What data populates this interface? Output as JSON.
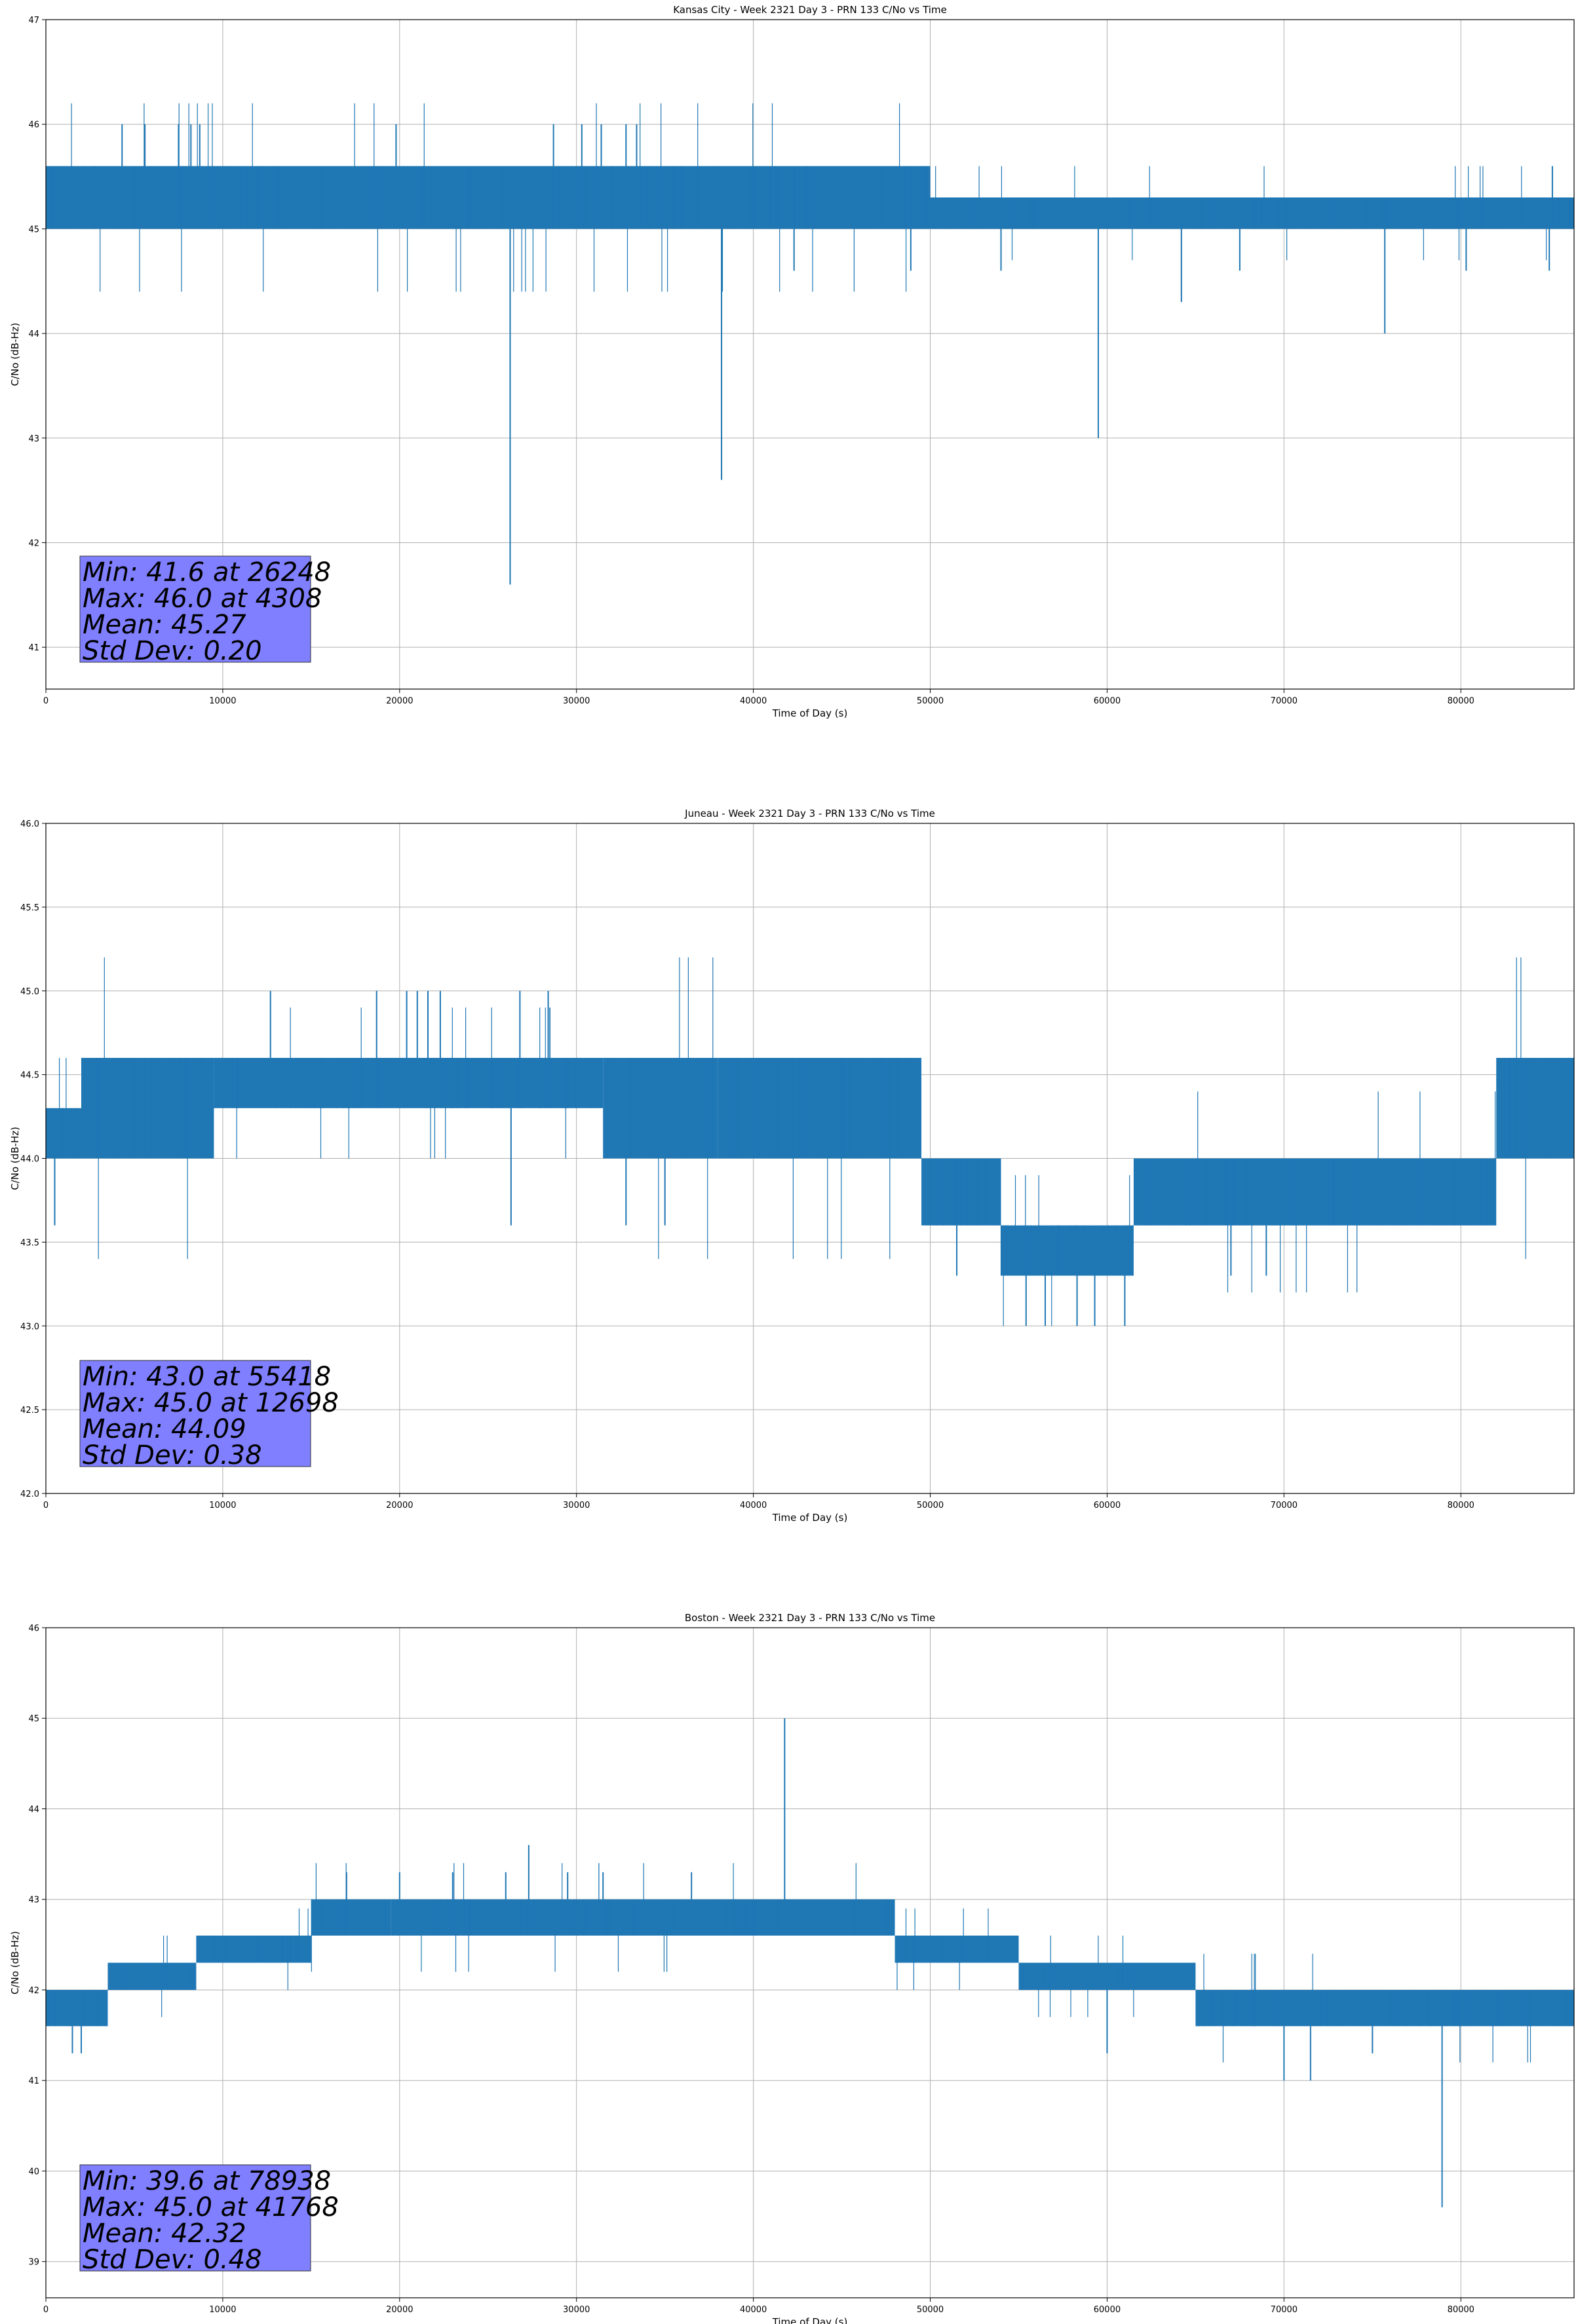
{
  "chart_data": [
    {
      "type": "line",
      "title": "Kansas City - Week 2321 Day 3 - PRN 133 C/No vs Time",
      "xlabel": "Time of Day (s)",
      "ylabel": "C/No (dB-Hz)",
      "xlim": [
        0,
        86400
      ],
      "ylim": [
        40.6,
        47.0
      ],
      "xticks": [
        0,
        10000,
        20000,
        30000,
        40000,
        50000,
        60000,
        70000,
        80000
      ],
      "yticks": [
        41,
        42,
        43,
        44,
        45,
        46,
        47
      ],
      "grid": true,
      "color": "#1f77b4",
      "stats_box_color": "#7f7fff",
      "stats": [
        "Min: 41.6 at 26248",
        "Max: 46.0 at 4308",
        "Mean: 45.27",
        "Std Dev: 0.20"
      ],
      "series": [
        {
          "band_segments": [
            {
              "x0": 0,
              "x1": 50000,
              "low": 45.0,
              "high": 45.6
            },
            {
              "x0": 50000,
              "x1": 86400,
              "low": 45.0,
              "high": 45.3
            }
          ],
          "spikes": [
            {
              "x": 26248,
              "y": 41.6
            },
            {
              "x": 38200,
              "y": 42.6
            },
            {
              "x": 59500,
              "y": 43.0
            },
            {
              "x": 75700,
              "y": 44.0
            },
            {
              "x": 64200,
              "y": 44.3
            },
            {
              "x": 42300,
              "y": 44.6
            },
            {
              "x": 48900,
              "y": 44.6
            },
            {
              "x": 54000,
              "y": 44.6
            },
            {
              "x": 67500,
              "y": 44.6
            },
            {
              "x": 85000,
              "y": 44.6
            },
            {
              "x": 80300,
              "y": 44.6
            },
            {
              "x": 4308,
              "y": 46.0
            },
            {
              "x": 5600,
              "y": 46.0
            },
            {
              "x": 7500,
              "y": 46.0
            },
            {
              "x": 8200,
              "y": 46.0
            },
            {
              "x": 8700,
              "y": 46.0
            },
            {
              "x": 19800,
              "y": 46.0
            },
            {
              "x": 28700,
              "y": 46.0
            },
            {
              "x": 30300,
              "y": 46.0
            },
            {
              "x": 31400,
              "y": 46.0
            },
            {
              "x": 32800,
              "y": 46.0
            },
            {
              "x": 33400,
              "y": 46.0
            }
          ]
        }
      ]
    },
    {
      "type": "line",
      "title": "Juneau - Week 2321 Day 3 - PRN 133 C/No vs Time",
      "xlabel": "Time of Day (s)",
      "ylabel": "C/No (dB-Hz)",
      "xlim": [
        0,
        86400
      ],
      "ylim": [
        42.0,
        46.0
      ],
      "xticks": [
        0,
        10000,
        20000,
        30000,
        40000,
        50000,
        60000,
        70000,
        80000
      ],
      "yticks": [
        42.0,
        42.5,
        43.0,
        43.5,
        44.0,
        44.5,
        45.0,
        45.5,
        46.0
      ],
      "grid": true,
      "color": "#1f77b4",
      "stats_box_color": "#7f7fff",
      "stats": [
        "Min: 43.0 at 55418",
        "Max: 45.0 at 12698",
        "Mean: 44.09",
        "Std Dev: 0.38"
      ],
      "series": [
        {
          "band_segments": [
            {
              "x0": 0,
              "x1": 2000,
              "low": 44.0,
              "high": 44.3
            },
            {
              "x0": 2000,
              "x1": 9500,
              "low": 44.0,
              "high": 44.6
            },
            {
              "x0": 9500,
              "x1": 31500,
              "low": 44.3,
              "high": 44.6
            },
            {
              "x0": 31500,
              "x1": 38000,
              "low": 44.0,
              "high": 44.6
            },
            {
              "x0": 38000,
              "x1": 49500,
              "low": 44.0,
              "high": 44.6
            },
            {
              "x0": 49500,
              "x1": 54000,
              "low": 43.6,
              "high": 44.0
            },
            {
              "x0": 54000,
              "x1": 61500,
              "low": 43.3,
              "high": 43.6
            },
            {
              "x0": 61500,
              "x1": 82000,
              "low": 43.6,
              "high": 44.0
            },
            {
              "x0": 82000,
              "x1": 86400,
              "low": 44.0,
              "high": 44.6
            }
          ],
          "spikes": [
            {
              "x": 12698,
              "y": 45.0
            },
            {
              "x": 18700,
              "y": 45.0
            },
            {
              "x": 20400,
              "y": 45.0
            },
            {
              "x": 21000,
              "y": 45.0
            },
            {
              "x": 21600,
              "y": 45.0
            },
            {
              "x": 22300,
              "y": 45.0
            },
            {
              "x": 26800,
              "y": 45.0
            },
            {
              "x": 28400,
              "y": 45.0
            },
            {
              "x": 500,
              "y": 43.6
            },
            {
              "x": 26300,
              "y": 43.6
            },
            {
              "x": 32800,
              "y": 43.6
            },
            {
              "x": 35000,
              "y": 43.6
            },
            {
              "x": 55418,
              "y": 43.0
            },
            {
              "x": 56500,
              "y": 43.0
            },
            {
              "x": 58300,
              "y": 43.0
            },
            {
              "x": 59300,
              "y": 43.0
            },
            {
              "x": 61000,
              "y": 43.0
            },
            {
              "x": 51500,
              "y": 43.3
            },
            {
              "x": 67000,
              "y": 43.3
            },
            {
              "x": 69000,
              "y": 43.3
            }
          ]
        }
      ]
    },
    {
      "type": "line",
      "title": "Boston - Week 2321 Day 3 - PRN 133 C/No vs Time",
      "xlabel": "Time of Day (s)",
      "ylabel": "C/No (dB-Hz)",
      "xlim": [
        0,
        86400
      ],
      "ylim": [
        38.6,
        46.0
      ],
      "xticks": [
        0,
        10000,
        20000,
        30000,
        40000,
        50000,
        60000,
        70000,
        80000
      ],
      "yticks": [
        39,
        40,
        41,
        42,
        43,
        44,
        45,
        46
      ],
      "grid": true,
      "color": "#1f77b4",
      "stats_box_color": "#7f7fff",
      "stats": [
        "Min: 39.6 at 78938",
        "Max: 45.0 at 41768",
        "Mean: 42.32",
        "Std Dev: 0.48"
      ],
      "series": [
        {
          "band_segments": [
            {
              "x0": 0,
              "x1": 3500,
              "low": 41.6,
              "high": 42.0
            },
            {
              "x0": 3500,
              "x1": 8500,
              "low": 42.0,
              "high": 42.3
            },
            {
              "x0": 8500,
              "x1": 15000,
              "low": 42.3,
              "high": 42.6
            },
            {
              "x0": 15000,
              "x1": 19500,
              "low": 42.6,
              "high": 43.0
            },
            {
              "x0": 19500,
              "x1": 48000,
              "low": 42.6,
              "high": 43.0
            },
            {
              "x0": 48000,
              "x1": 55000,
              "low": 42.3,
              "high": 42.6
            },
            {
              "x0": 55000,
              "x1": 65000,
              "low": 42.0,
              "high": 42.3
            },
            {
              "x0": 65000,
              "x1": 86400,
              "low": 41.6,
              "high": 42.0
            }
          ],
          "spikes": [
            {
              "x": 41768,
              "y": 45.0
            },
            {
              "x": 27300,
              "y": 43.6
            },
            {
              "x": 17000,
              "y": 43.3
            },
            {
              "x": 20000,
              "y": 43.3
            },
            {
              "x": 23000,
              "y": 43.3
            },
            {
              "x": 26000,
              "y": 43.3
            },
            {
              "x": 29500,
              "y": 43.3
            },
            {
              "x": 31500,
              "y": 43.3
            },
            {
              "x": 36500,
              "y": 43.3
            },
            {
              "x": 78938,
              "y": 39.6
            },
            {
              "x": 70000,
              "y": 41.0
            },
            {
              "x": 71500,
              "y": 41.0
            },
            {
              "x": 60000,
              "y": 41.3
            },
            {
              "x": 75000,
              "y": 41.3
            },
            {
              "x": 1500,
              "y": 41.3
            },
            {
              "x": 2000,
              "y": 41.3
            }
          ]
        }
      ]
    }
  ]
}
